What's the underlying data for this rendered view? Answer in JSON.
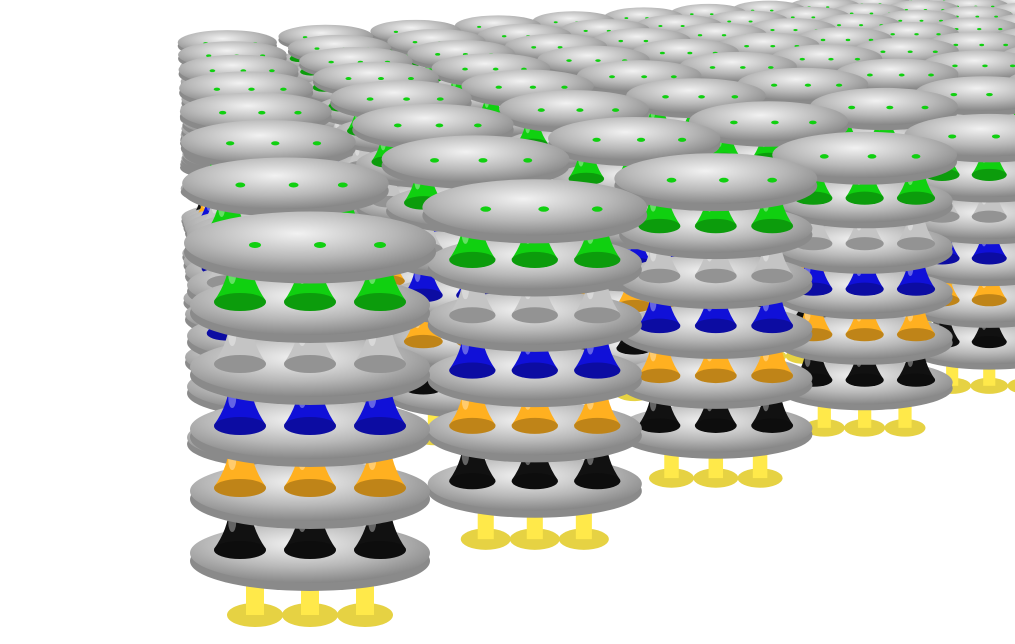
{
  "scene": {
    "description_free": true,
    "background_color": "#ffffff",
    "grid": {
      "columns": 14,
      "rows": 8
    },
    "layer_colors": {
      "foot": "#ffe94a",
      "black": "#111111",
      "orange": "#ffb020",
      "blue": "#1010d8",
      "grey": "#c4c4c4",
      "green": "#10d010"
    },
    "disk_color": "#b9b9b9",
    "layer_order": [
      "foot",
      "black",
      "orange",
      "blue",
      "grey",
      "green"
    ]
  }
}
